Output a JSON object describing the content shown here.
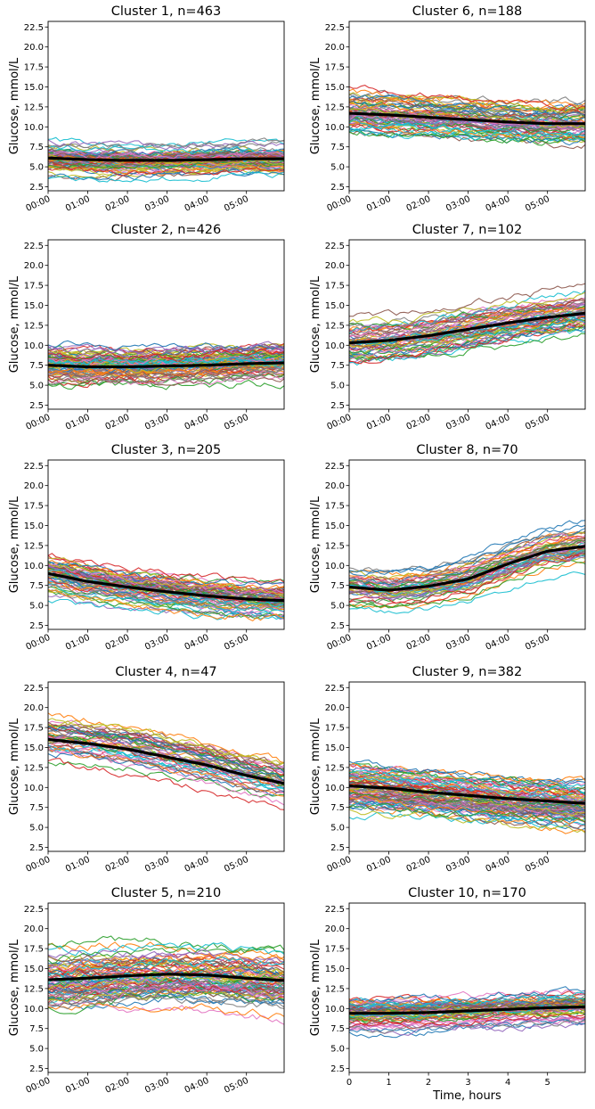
{
  "figure": {
    "palette": [
      "#1f77b4",
      "#ff7f0e",
      "#2ca02c",
      "#d62728",
      "#9467bd",
      "#8c564b",
      "#e377c2",
      "#7f7f7f",
      "#bcbd22",
      "#17becf"
    ],
    "mean_color": "#000000"
  },
  "chart_data": [
    {
      "type": "line",
      "title": "Cluster 1, n=463",
      "ylabel": "Glucose, mmol/L",
      "xlabel": "",
      "ylim": [
        2,
        23.2
      ],
      "xlim": [
        0,
        5.95
      ],
      "yticks": [
        "2.5",
        "5.0",
        "7.5",
        "10.0",
        "12.5",
        "15.0",
        "17.5",
        "20.0",
        "22.5"
      ],
      "xticks": [
        "00:00",
        "01:00",
        "02:00",
        "03:00",
        "04:00",
        "05:00"
      ],
      "xtick_style": "rotated",
      "mean_profile": {
        "x": [
          0,
          1,
          2,
          3,
          4,
          5,
          5.95
        ],
        "y": [
          6.1,
          5.9,
          5.8,
          5.8,
          5.9,
          6.0,
          6.0
        ]
      },
      "spread": 1.1,
      "noise": 0.5,
      "trace_count": 90
    },
    {
      "type": "line",
      "title": "Cluster 6, n=188",
      "ylabel": "Glucose, mmol/L",
      "xlabel": "",
      "ylim": [
        2,
        23.2
      ],
      "xlim": [
        0,
        5.95
      ],
      "yticks": [
        "2.5",
        "5.0",
        "7.5",
        "10.0",
        "12.5",
        "15.0",
        "17.5",
        "20.0",
        "22.5"
      ],
      "xticks": [
        "00:00",
        "01:00",
        "02:00",
        "03:00",
        "04:00",
        "05:00"
      ],
      "xtick_style": "rotated",
      "mean_profile": {
        "x": [
          0,
          1,
          2,
          3,
          4,
          5,
          5.95
        ],
        "y": [
          11.7,
          11.5,
          11.2,
          10.9,
          10.6,
          10.4,
          10.4
        ]
      },
      "spread": 1.5,
      "noise": 0.6,
      "trace_count": 70
    },
    {
      "type": "line",
      "title": "Cluster 2, n=426",
      "ylabel": "Glucose, mmol/L",
      "xlabel": "",
      "ylim": [
        2,
        23.2
      ],
      "xlim": [
        0,
        5.95
      ],
      "yticks": [
        "2.5",
        "5.0",
        "7.5",
        "10.0",
        "12.5",
        "15.0",
        "17.5",
        "20.0",
        "22.5"
      ],
      "xticks": [
        "00:00",
        "01:00",
        "02:00",
        "03:00",
        "04:00",
        "05:00"
      ],
      "xtick_style": "rotated",
      "mean_profile": {
        "x": [
          0,
          1,
          2,
          3,
          4,
          5,
          5.95
        ],
        "y": [
          7.5,
          7.3,
          7.3,
          7.4,
          7.5,
          7.7,
          7.8
        ]
      },
      "spread": 1.3,
      "noise": 0.6,
      "trace_count": 90
    },
    {
      "type": "line",
      "title": "Cluster 7, n=102",
      "ylabel": "Glucose, mmol/L",
      "xlabel": "",
      "ylim": [
        2,
        23.2
      ],
      "xlim": [
        0,
        5.95
      ],
      "yticks": [
        "2.5",
        "5.0",
        "7.5",
        "10.0",
        "12.5",
        "15.0",
        "17.5",
        "20.0",
        "22.5"
      ],
      "xticks": [
        "00:00",
        "01:00",
        "02:00",
        "03:00",
        "04:00",
        "05:00"
      ],
      "xtick_style": "rotated",
      "mean_profile": {
        "x": [
          0,
          1,
          2,
          3,
          4,
          5,
          5.95
        ],
        "y": [
          10.3,
          10.6,
          11.2,
          12.0,
          12.8,
          13.5,
          14.0
        ]
      },
      "spread": 1.6,
      "noise": 0.6,
      "trace_count": 60
    },
    {
      "type": "line",
      "title": "Cluster 3, n=205",
      "ylabel": "Glucose, mmol/L",
      "xlabel": "",
      "ylim": [
        2,
        23.2
      ],
      "xlim": [
        0,
        5.95
      ],
      "yticks": [
        "2.5",
        "5.0",
        "7.5",
        "10.0",
        "12.5",
        "15.0",
        "17.5",
        "20.0",
        "22.5"
      ],
      "xticks": [
        "00:00",
        "01:00",
        "02:00",
        "03:00",
        "04:00",
        "05:00"
      ],
      "xtick_style": "rotated",
      "mean_profile": {
        "x": [
          0,
          1,
          2,
          3,
          4,
          5,
          5.95
        ],
        "y": [
          9.0,
          8.0,
          7.3,
          6.7,
          6.2,
          5.8,
          5.6
        ]
      },
      "spread": 1.5,
      "noise": 0.55,
      "trace_count": 70
    },
    {
      "type": "line",
      "title": "Cluster 8, n=70",
      "ylabel": "Glucose, mmol/L",
      "xlabel": "",
      "ylim": [
        2,
        23.2
      ],
      "xlim": [
        0,
        5.95
      ],
      "yticks": [
        "2.5",
        "5.0",
        "7.5",
        "10.0",
        "12.5",
        "15.0",
        "17.5",
        "20.0",
        "22.5"
      ],
      "xticks": [
        "00:00",
        "01:00",
        "02:00",
        "03:00",
        "04:00",
        "05:00"
      ],
      "xtick_style": "rotated",
      "mean_profile": {
        "x": [
          0,
          1,
          2,
          3,
          4,
          5,
          5.95
        ],
        "y": [
          7.3,
          6.9,
          7.4,
          8.3,
          10.2,
          11.8,
          12.4
        ]
      },
      "spread": 1.5,
      "noise": 0.5,
      "trace_count": 50
    },
    {
      "type": "line",
      "title": "Cluster 4, n=47",
      "ylabel": "Glucose, mmol/L",
      "xlabel": "",
      "ylim": [
        2,
        23.2
      ],
      "xlim": [
        0,
        5.95
      ],
      "yticks": [
        "2.5",
        "5.0",
        "7.5",
        "10.0",
        "12.5",
        "15.0",
        "17.5",
        "20.0",
        "22.5"
      ],
      "xticks": [
        "00:00",
        "01:00",
        "02:00",
        "03:00",
        "04:00",
        "05:00"
      ],
      "xtick_style": "rotated",
      "mean_profile": {
        "x": [
          0,
          1,
          2,
          3,
          4,
          5,
          5.95
        ],
        "y": [
          16.0,
          15.5,
          14.8,
          13.8,
          12.8,
          11.5,
          10.5
        ]
      },
      "spread": 1.6,
      "noise": 0.6,
      "trace_count": 47
    },
    {
      "type": "line",
      "title": "Cluster 9, n=382",
      "ylabel": "Glucose, mmol/L",
      "xlabel": "",
      "ylim": [
        2,
        23.2
      ],
      "xlim": [
        0,
        5.95
      ],
      "yticks": [
        "2.5",
        "5.0",
        "7.5",
        "10.0",
        "12.5",
        "15.0",
        "17.5",
        "20.0",
        "22.5"
      ],
      "xticks": [
        "00:00",
        "01:00",
        "02:00",
        "03:00",
        "04:00",
        "05:00"
      ],
      "xtick_style": "rotated",
      "mean_profile": {
        "x": [
          0,
          1,
          2,
          3,
          4,
          5,
          5.95
        ],
        "y": [
          10.2,
          9.9,
          9.4,
          9.0,
          8.6,
          8.3,
          8.0
        ]
      },
      "spread": 1.8,
      "noise": 0.6,
      "trace_count": 90
    },
    {
      "type": "line",
      "title": "Cluster 5, n=210",
      "ylabel": "Glucose, mmol/L",
      "xlabel": "",
      "ylim": [
        2,
        23.2
      ],
      "xlim": [
        0,
        5.95
      ],
      "yticks": [
        "2.5",
        "5.0",
        "7.5",
        "10.0",
        "12.5",
        "15.0",
        "17.5",
        "20.0",
        "22.5"
      ],
      "xticks": [
        "00:00",
        "01:00",
        "02:00",
        "03:00",
        "04:00",
        "05:00"
      ],
      "xtick_style": "rotated",
      "mean_profile": {
        "x": [
          0,
          1,
          2,
          3,
          4,
          5,
          5.95
        ],
        "y": [
          13.6,
          13.8,
          14.1,
          14.3,
          14.2,
          13.8,
          13.5
        ]
      },
      "spread": 2.2,
      "noise": 0.7,
      "trace_count": 80
    },
    {
      "type": "line",
      "title": "Cluster 10, n=170",
      "ylabel": "Glucose, mmol/L",
      "xlabel": "Time, hours",
      "ylim": [
        2,
        23.2
      ],
      "xlim": [
        0,
        5.95
      ],
      "yticks": [
        "2.5",
        "5.0",
        "7.5",
        "10.0",
        "12.5",
        "15.0",
        "17.5",
        "20.0",
        "22.5"
      ],
      "xticks": [
        "0",
        "1",
        "2",
        "3",
        "4",
        "5"
      ],
      "xtick_style": "plain",
      "mean_profile": {
        "x": [
          0,
          1,
          2,
          3,
          4,
          5,
          5.95
        ],
        "y": [
          9.4,
          9.4,
          9.5,
          9.7,
          9.9,
          10.1,
          10.2
        ]
      },
      "spread": 1.2,
      "noise": 0.55,
      "trace_count": 70
    }
  ]
}
